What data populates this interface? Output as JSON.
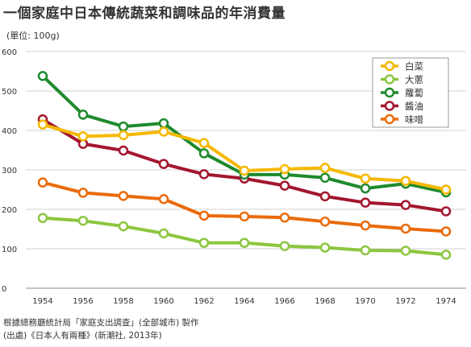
{
  "title": "一個家庭中日本傳統蔬菜和調味品的年消費量",
  "unit_label": "(單位: 100g)",
  "source": {
    "line1": "根據總務廳統計局「家庭支出調查」(全部城市) 製作",
    "line2": "(出處)《日本人有兩種》(新潮社, 2013年)"
  },
  "chart_data": {
    "type": "line",
    "title": "一個家庭中日本傳統蔬菜和調味品的年消費量",
    "xlabel": "",
    "ylabel": "(單位: 100g)",
    "x": [
      "1954",
      "1956",
      "1958",
      "1960",
      "1962",
      "1964",
      "1966",
      "1968",
      "1970",
      "1972",
      "1974"
    ],
    "ylim": [
      0,
      600
    ],
    "yticks": [
      "0",
      "100",
      "200",
      "300",
      "400",
      "500",
      "600"
    ],
    "grid": true,
    "legend_position": "top-right",
    "series": [
      {
        "name": "白菜",
        "color": "#f5b800",
        "values": [
          415,
          385,
          388,
          397,
          368,
          298,
          302,
          305,
          278,
          272,
          250
        ]
      },
      {
        "name": "大蔥",
        "color": "#8cc63f",
        "values": [
          178,
          171,
          157,
          139,
          115,
          115,
          107,
          103,
          96,
          95,
          85
        ]
      },
      {
        "name": "蘿蔔",
        "color": "#1e8a2e",
        "values": [
          538,
          440,
          410,
          418,
          342,
          288,
          288,
          280,
          253,
          265,
          243
        ]
      },
      {
        "name": "醬油",
        "color": "#a3162e",
        "values": [
          428,
          366,
          349,
          315,
          289,
          278,
          260,
          233,
          217,
          211,
          195
        ]
      },
      {
        "name": "味噌",
        "color": "#ea6b0a",
        "values": [
          268,
          242,
          234,
          226,
          184,
          182,
          179,
          169,
          159,
          151,
          144
        ]
      }
    ]
  }
}
